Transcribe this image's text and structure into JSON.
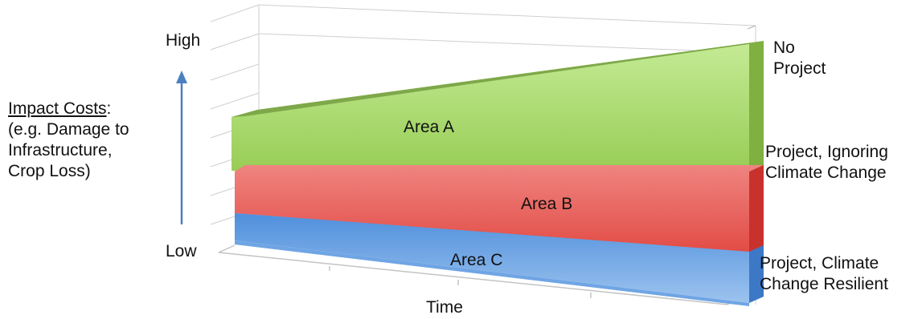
{
  "chart_data": {
    "type": "area",
    "y_axis": {
      "title_underlined": "Impact Costs",
      "title_rest": ":",
      "title_lines": [
        "(e.g. Damage to",
        "Infrastructure,",
        "Crop Loss)"
      ],
      "high_label": "High",
      "low_label": "Low"
    },
    "x_axis": {
      "label": "Time"
    },
    "areas": [
      {
        "name": "Area A",
        "color": "#8cc850"
      },
      {
        "name": "Area B",
        "color": "#e8524d"
      },
      {
        "name": "Area C",
        "color": "#4f8fdc"
      }
    ],
    "scenario_labels": {
      "no_project": [
        "No",
        "Project"
      ],
      "ignoring": [
        "Project, Ignoring",
        "Climate Change"
      ],
      "resilient": [
        "Project, Climate",
        "Change Resilient"
      ]
    },
    "arrow_color": "#4a7fc0",
    "grid": true
  }
}
